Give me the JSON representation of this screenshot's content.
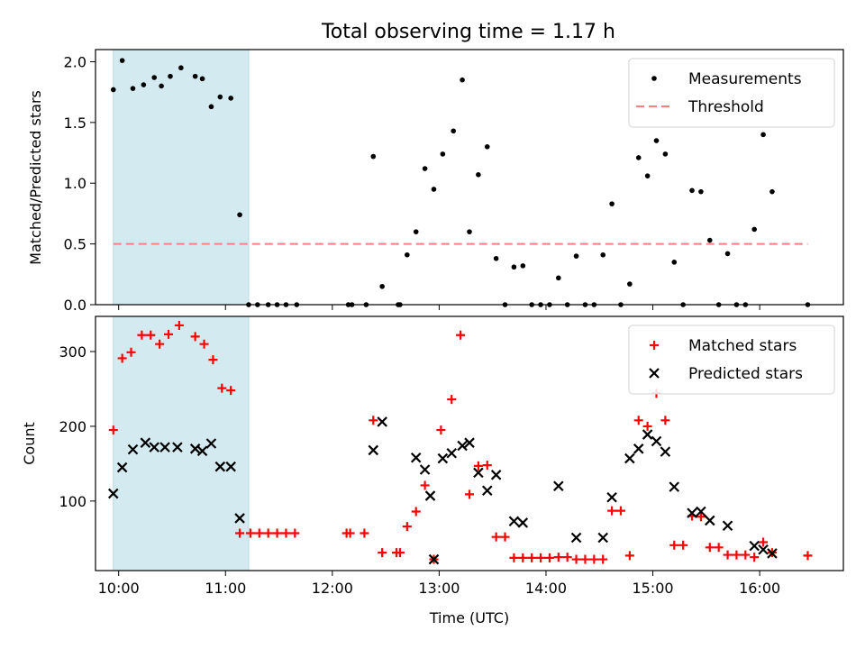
{
  "chart_data": [
    {
      "type": "scatter",
      "title": "Total observing time = 1.17 h",
      "xlabel": "",
      "ylabel": "Matched/Predicted stars",
      "ylim": [
        0,
        2.1
      ],
      "xlim": [
        "09:47",
        "16:47"
      ],
      "yticks": [
        "0.0",
        "0.5",
        "1.0",
        "1.5",
        "2.0"
      ],
      "grid": false,
      "legend_position": "top-right",
      "shaded_interval": [
        "09:57",
        "11:13"
      ],
      "shade_color": "#d4eaf1",
      "series": [
        {
          "name": "Measurements",
          "marker": "dot",
          "color": "#000000",
          "points": [
            [
              "09:57",
              1.77
            ],
            [
              "10:02",
              2.01
            ],
            [
              "10:08",
              1.78
            ],
            [
              "10:14",
              1.81
            ],
            [
              "10:20",
              1.87
            ],
            [
              "10:24",
              1.8
            ],
            [
              "10:29",
              1.88
            ],
            [
              "10:35",
              1.95
            ],
            [
              "10:43",
              1.88
            ],
            [
              "10:47",
              1.86
            ],
            [
              "10:52",
              1.63
            ],
            [
              "10:57",
              1.71
            ],
            [
              "11:03",
              1.7
            ],
            [
              "11:08",
              0.74
            ],
            [
              "11:13",
              0.0
            ],
            [
              "11:18",
              0.0
            ],
            [
              "11:24",
              0.0
            ],
            [
              "11:29",
              0.0
            ],
            [
              "11:34",
              0.0
            ],
            [
              "11:40",
              0.0
            ],
            [
              "12:09",
              0.0
            ],
            [
              "12:11",
              0.0
            ],
            [
              "12:19",
              0.0
            ],
            [
              "12:23",
              1.22
            ],
            [
              "12:28",
              0.15
            ],
            [
              "12:37",
              0.0
            ],
            [
              "12:38",
              0.0
            ],
            [
              "12:42",
              0.41
            ],
            [
              "12:47",
              0.6
            ],
            [
              "12:52",
              1.12
            ],
            [
              "12:57",
              0.95
            ],
            [
              "13:02",
              1.24
            ],
            [
              "13:08",
              1.43
            ],
            [
              "13:13",
              1.85
            ],
            [
              "13:17",
              0.6
            ],
            [
              "13:22",
              1.07
            ],
            [
              "13:27",
              1.3
            ],
            [
              "13:32",
              0.38
            ],
            [
              "13:37",
              0.0
            ],
            [
              "13:42",
              0.31
            ],
            [
              "13:47",
              0.32
            ],
            [
              "13:52",
              0.0
            ],
            [
              "13:57",
              0.0
            ],
            [
              "14:02",
              0.0
            ],
            [
              "14:07",
              0.22
            ],
            [
              "14:12",
              0.0
            ],
            [
              "14:17",
              0.4
            ],
            [
              "14:22",
              0.0
            ],
            [
              "14:27",
              0.0
            ],
            [
              "14:32",
              0.41
            ],
            [
              "14:37",
              0.83
            ],
            [
              "14:42",
              0.0
            ],
            [
              "14:47",
              0.17
            ],
            [
              "14:52",
              1.21
            ],
            [
              "14:57",
              1.06
            ],
            [
              "15:02",
              1.35
            ],
            [
              "15:07",
              1.24
            ],
            [
              "15:12",
              0.35
            ],
            [
              "15:17",
              0.0
            ],
            [
              "15:22",
              0.94
            ],
            [
              "15:27",
              0.93
            ],
            [
              "15:32",
              0.53
            ],
            [
              "15:37",
              0.0
            ],
            [
              "15:42",
              0.42
            ],
            [
              "15:47",
              0.0
            ],
            [
              "15:52",
              0.0
            ],
            [
              "15:57",
              0.62
            ],
            [
              "16:02",
              1.4
            ],
            [
              "16:07",
              0.93
            ],
            [
              "16:27",
              0.0
            ]
          ]
        },
        {
          "name": "Threshold",
          "marker": "dashed-line",
          "color": "#ff7f7f",
          "points": [
            [
              "09:57",
              0.5
            ],
            [
              "16:27",
              0.5
            ]
          ]
        }
      ]
    },
    {
      "type": "scatter",
      "title": "",
      "xlabel": "Time (UTC)",
      "ylabel": "Count",
      "ylim": [
        7,
        347
      ],
      "xlim": [
        "09:47",
        "16:47"
      ],
      "yticks": [
        "100",
        "200",
        "300"
      ],
      "xticks": [
        "10:00",
        "11:00",
        "12:00",
        "13:00",
        "14:00",
        "15:00",
        "16:00"
      ],
      "grid": false,
      "legend_position": "top-right",
      "shaded_interval": [
        "09:57",
        "11:13"
      ],
      "shade_color": "#d4eaf1",
      "series": [
        {
          "name": "Matched stars",
          "marker": "plus",
          "color": "#ff0000",
          "points": [
            [
              "09:57",
              195
            ],
            [
              "10:02",
              291
            ],
            [
              "10:07",
              299
            ],
            [
              "10:13",
              322
            ],
            [
              "10:18",
              322
            ],
            [
              "10:23",
              310
            ],
            [
              "10:28",
              323
            ],
            [
              "10:34",
              335
            ],
            [
              "10:43",
              320
            ],
            [
              "10:48",
              310
            ],
            [
              "10:53",
              289
            ],
            [
              "10:58",
              251
            ],
            [
              "11:03",
              248
            ],
            [
              "11:08",
              57
            ],
            [
              "11:14",
              57
            ],
            [
              "11:19",
              57
            ],
            [
              "11:24",
              57
            ],
            [
              "11:29",
              57
            ],
            [
              "11:34",
              57
            ],
            [
              "11:39",
              57
            ],
            [
              "12:08",
              57
            ],
            [
              "12:10",
              57
            ],
            [
              "12:18",
              57
            ],
            [
              "12:23",
              208
            ],
            [
              "12:28",
              31
            ],
            [
              "12:36",
              31
            ],
            [
              "12:38",
              31
            ],
            [
              "12:42",
              66
            ],
            [
              "12:47",
              86
            ],
            [
              "12:52",
              121
            ],
            [
              "12:57",
              22
            ],
            [
              "13:01",
              195
            ],
            [
              "13:07",
              236
            ],
            [
              "13:12",
              322
            ],
            [
              "13:17",
              109
            ],
            [
              "13:22",
              147
            ],
            [
              "13:27",
              148
            ],
            [
              "13:32",
              52
            ],
            [
              "13:37",
              52
            ],
            [
              "13:42",
              24
            ],
            [
              "13:47",
              24
            ],
            [
              "13:52",
              24
            ],
            [
              "13:57",
              24
            ],
            [
              "14:02",
              24
            ],
            [
              "14:07",
              25
            ],
            [
              "14:12",
              25
            ],
            [
              "14:17",
              22
            ],
            [
              "14:22",
              22
            ],
            [
              "14:27",
              22
            ],
            [
              "14:32",
              22
            ],
            [
              "14:37",
              87
            ],
            [
              "14:42",
              87
            ],
            [
              "14:47",
              27
            ],
            [
              "14:52",
              208
            ],
            [
              "14:57",
              200
            ],
            [
              "15:02",
              244
            ],
            [
              "15:07",
              208
            ],
            [
              "15:12",
              41
            ],
            [
              "15:17",
              41
            ],
            [
              "15:22",
              80
            ],
            [
              "15:27",
              79
            ],
            [
              "15:32",
              38
            ],
            [
              "15:37",
              38
            ],
            [
              "15:42",
              28
            ],
            [
              "15:47",
              28
            ],
            [
              "15:52",
              28
            ],
            [
              "15:57",
              25
            ],
            [
              "16:02",
              45
            ],
            [
              "16:07",
              31
            ],
            [
              "16:27",
              27
            ]
          ]
        },
        {
          "name": "Predicted stars",
          "marker": "x",
          "color": "#000000",
          "points": [
            [
              "09:57",
              110
            ],
            [
              "10:02",
              145
            ],
            [
              "10:08",
              169
            ],
            [
              "10:15",
              178
            ],
            [
              "10:20",
              172
            ],
            [
              "10:26",
              172
            ],
            [
              "10:33",
              172
            ],
            [
              "10:43",
              170
            ],
            [
              "10:47",
              167
            ],
            [
              "10:52",
              177
            ],
            [
              "10:57",
              146
            ],
            [
              "11:03",
              146
            ],
            [
              "11:08",
              77
            ],
            [
              "12:23",
              168
            ],
            [
              "12:28",
              206
            ],
            [
              "12:47",
              158
            ],
            [
              "12:52",
              142
            ],
            [
              "12:55",
              107
            ],
            [
              "12:57",
              22
            ],
            [
              "13:02",
              157
            ],
            [
              "13:07",
              164
            ],
            [
              "13:13",
              174
            ],
            [
              "13:17",
              178
            ],
            [
              "13:22",
              138
            ],
            [
              "13:27",
              114
            ],
            [
              "13:32",
              135
            ],
            [
              "13:42",
              73
            ],
            [
              "13:47",
              71
            ],
            [
              "14:07",
              120
            ],
            [
              "14:17",
              51
            ],
            [
              "14:32",
              51
            ],
            [
              "14:37",
              105
            ],
            [
              "14:47",
              157
            ],
            [
              "14:52",
              170
            ],
            [
              "14:57",
              189
            ],
            [
              "15:02",
              180
            ],
            [
              "15:07",
              166
            ],
            [
              "15:12",
              119
            ],
            [
              "15:22",
              84
            ],
            [
              "15:27",
              86
            ],
            [
              "15:32",
              74
            ],
            [
              "15:42",
              67
            ],
            [
              "15:57",
              40
            ],
            [
              "16:02",
              35
            ],
            [
              "16:07",
              30
            ]
          ]
        }
      ]
    }
  ]
}
